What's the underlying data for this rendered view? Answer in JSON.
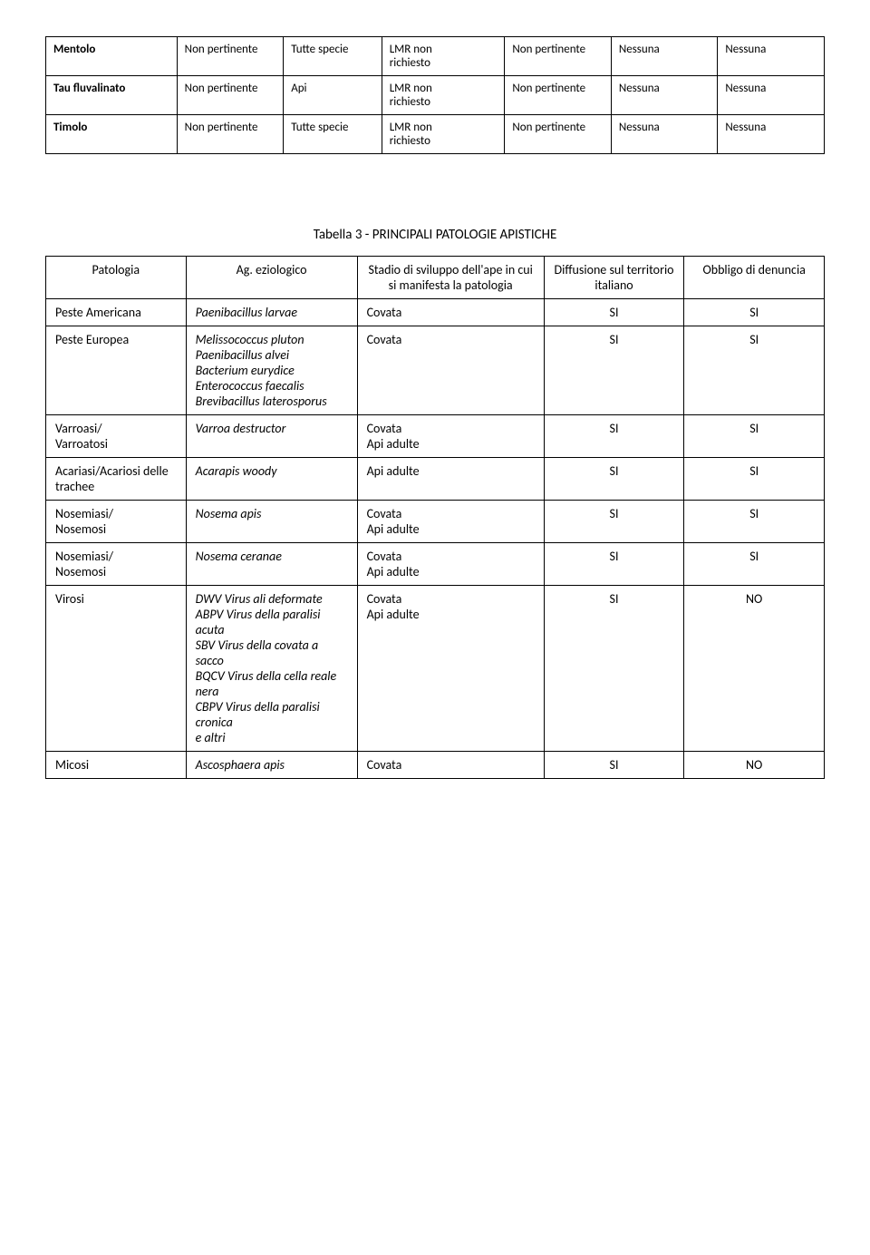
{
  "table1": {
    "rows": [
      {
        "name": "Mentolo",
        "col2": "Non pertinente",
        "col3": "Tutte specie",
        "col4": "LMR non richiesto",
        "col5": "Non pertinente",
        "col6": "Nessuna",
        "col7": "Nessuna"
      },
      {
        "name": "Tau fluvalinato",
        "col2": "Non pertinente",
        "col3": "Api",
        "col4": "LMR non richiesto",
        "col5": "Non pertinente",
        "col6": "Nessuna",
        "col7": "Nessuna"
      },
      {
        "name": "Timolo",
        "col2": "Non pertinente",
        "col3": "Tutte specie",
        "col4": "LMR non richiesto",
        "col5": "Non pertinente",
        "col6": "Nessuna",
        "col7": "Nessuna"
      }
    ]
  },
  "table2": {
    "title": "Tabella 3 - PRINCIPALI PATOLOGIE APISTICHE",
    "header": {
      "c1": "Patologia",
      "c2": "Ag. eziologico",
      "c3": "Stadio di sviluppo dell'ape in cui si manifesta la patologia",
      "c4": "Diffusione sul territorio italiano",
      "c5": "Obbligo di denuncia"
    },
    "rows": [
      {
        "c1": "Peste Americana",
        "c2": "Paenibacillus larvae",
        "c3": "Covata",
        "c4": "SI",
        "c5": "SI"
      },
      {
        "c1": "Peste Europea",
        "c2": "Melissococcus pluton\nPaenibacillus alvei\nBacterium eurydice\nEnterococcus faecalis\nBrevibacillus laterosporus",
        "c3": "Covata",
        "c4": "SI",
        "c5": "SI"
      },
      {
        "c1": "Varroasi/\nVarroatosi",
        "c2": "Varroa destructor",
        "c3": "Covata\nApi adulte",
        "c4": "SI",
        "c5": "SI"
      },
      {
        "c1": "Acariasi/Acariosi delle trachee",
        "c2": "Acarapis woody",
        "c3": "Api adulte",
        "c4": "SI",
        "c5": "SI"
      },
      {
        "c1": "Nosemiasi/\nNosemosi",
        "c2": "Nosema apis",
        "c3": "Covata\nApi adulte",
        "c4": "SI",
        "c5": "SI"
      },
      {
        "c1": "Nosemiasi/\nNosemosi",
        "c2": "Nosema ceranae",
        "c3": "Covata\nApi adulte",
        "c4": "SI",
        "c5": "SI"
      },
      {
        "c1": "Virosi",
        "c2": "DWV Virus ali deformate\nABPV Virus della paralisi acuta\nSBV Virus della covata a sacco\nBQCV Virus della cella reale nera\nCBPV Virus della paralisi cronica\ne  altri",
        "c3": "Covata\nApi adulte",
        "c4": "SI",
        "c5": "NO"
      },
      {
        "c1": "Micosi",
        "c2": "Ascosphaera apis",
        "c3": "Covata",
        "c4": "SI",
        "c5": "NO"
      }
    ]
  }
}
